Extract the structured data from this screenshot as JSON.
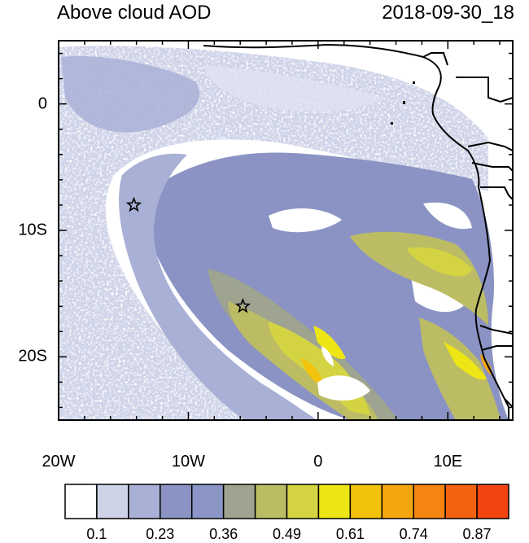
{
  "title": "Above cloud AOD",
  "datetime": "2018-09-30_18",
  "x_axis": {
    "ticks": [
      "20W",
      "10W",
      "0",
      "10E"
    ]
  },
  "y_axis": {
    "ticks": [
      "0",
      "10S",
      "20S"
    ]
  },
  "colorbar": {
    "labels": [
      "0.1",
      "0.23",
      "0.36",
      "0.49",
      "0.61",
      "0.74",
      "0.87"
    ],
    "colors": [
      "#ffffff",
      "#cfd3e8",
      "#a9b0d6",
      "#8a93c3",
      "#8b95c6",
      "#9ea48f",
      "#bcbc65",
      "#d4d442",
      "#eee514",
      "#f3c20c",
      "#f5a60f",
      "#f58412",
      "#f36210",
      "#f2440e"
    ]
  },
  "markers": [
    {
      "name": "star-marker-1",
      "lon": -14.2,
      "lat": -8.0
    },
    {
      "name": "star-marker-2",
      "lon": -5.8,
      "lat": -16.0
    }
  ]
}
